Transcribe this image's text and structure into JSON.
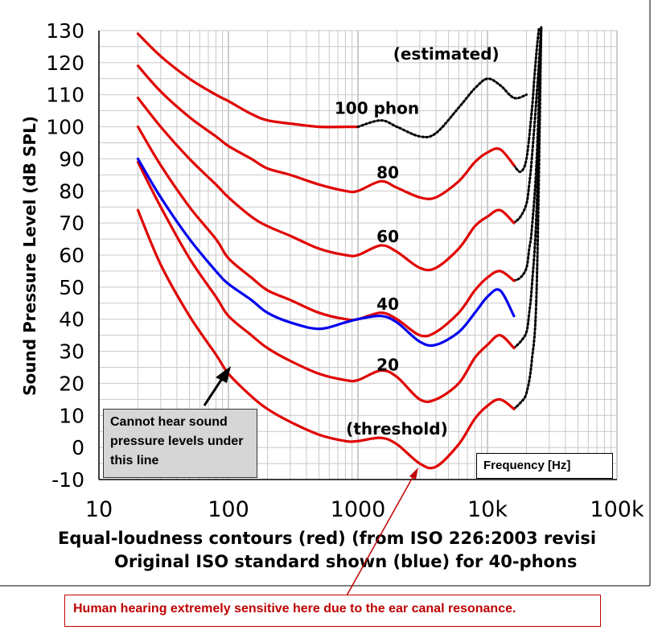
{
  "chart_data": {
    "type": "line",
    "title": "",
    "xlabel_line1": "Equal-loudness contours (red) (from ISO 226:2003 revisi",
    "xlabel_line2": "Original ISO standard shown (blue) for 40-phons",
    "ylabel": "Sound Pressure Level (dB SPL)",
    "x_scale": "log",
    "xlim": [
      10,
      100000
    ],
    "ylim": [
      -10,
      130
    ],
    "x_ticks": [
      10,
      100,
      1000,
      10000,
      100000
    ],
    "x_tick_labels": [
      "10",
      "100",
      "1000",
      "10k",
      "100k"
    ],
    "y_ticks": [
      -10,
      0,
      10,
      20,
      30,
      40,
      50,
      60,
      70,
      80,
      90,
      100,
      110,
      120,
      130
    ],
    "y_tick_labels": [
      "-10",
      "0",
      "10",
      "20",
      "30",
      "40",
      "50",
      "60",
      "70",
      "80",
      "90",
      "100",
      "110",
      "120",
      "130"
    ],
    "grid": true,
    "series": [
      {
        "name": "threshold",
        "label": "(threshold)",
        "color": "#e00000",
        "style": "solid",
        "x": [
          20,
          30,
          50,
          80,
          100,
          150,
          200,
          300,
          500,
          800,
          1000,
          1500,
          2000,
          3000,
          4000,
          6000,
          8000,
          10000,
          12500,
          16000
        ],
        "y": [
          74,
          57,
          41,
          29,
          23,
          16,
          12,
          8,
          4,
          2,
          2,
          3,
          1,
          -5,
          -6,
          1,
          9,
          13,
          15,
          12
        ]
      },
      {
        "name": "20 phon",
        "label": "20",
        "color": "#e00000",
        "style": "solid",
        "x": [
          20,
          30,
          50,
          80,
          100,
          150,
          200,
          300,
          500,
          800,
          1000,
          1500,
          2000,
          3000,
          4000,
          6000,
          8000,
          10000,
          12500,
          16000
        ],
        "y": [
          89,
          75,
          59,
          47,
          41,
          35,
          31,
          27,
          23,
          21,
          21,
          24,
          22,
          15,
          15,
          20,
          28,
          32,
          35,
          31
        ]
      },
      {
        "name": "40 phon",
        "label": "40",
        "color": "#e00000",
        "style": "solid",
        "x": [
          20,
          30,
          50,
          80,
          100,
          150,
          200,
          300,
          500,
          800,
          1000,
          1500,
          2000,
          3000,
          4000,
          6000,
          8000,
          10000,
          12500,
          16000
        ],
        "y": [
          100,
          88,
          75,
          65,
          59,
          53,
          49,
          46,
          42,
          40,
          40,
          42,
          40,
          35,
          36,
          42,
          49,
          53,
          55,
          52
        ]
      },
      {
        "name": "60 phon",
        "label": "60",
        "color": "#e00000",
        "style": "solid",
        "x": [
          20,
          30,
          50,
          80,
          100,
          150,
          200,
          300,
          500,
          800,
          1000,
          1500,
          2000,
          3000,
          4000,
          6000,
          8000,
          10000,
          12500,
          16000
        ],
        "y": [
          109,
          100,
          90,
          82,
          78,
          72,
          69,
          66,
          62,
          60,
          60,
          63,
          61,
          56,
          56,
          62,
          69,
          72,
          74,
          70
        ]
      },
      {
        "name": "80 phon",
        "label": "80",
        "color": "#e00000",
        "style": "solid",
        "x": [
          20,
          30,
          50,
          80,
          100,
          150,
          200,
          300,
          500,
          800,
          1000,
          1500,
          2000,
          3000,
          4000,
          6000,
          8000,
          10000,
          12500,
          16000
        ],
        "y": [
          119,
          111,
          103,
          97,
          94,
          90,
          87,
          85,
          82,
          80,
          80,
          83,
          81,
          78,
          78,
          83,
          89,
          92,
          93,
          88
        ]
      },
      {
        "name": "100 phon",
        "label": "100 phon",
        "color": "#e00000",
        "style": "solid",
        "x": [
          20,
          30,
          50,
          80,
          100,
          150,
          200,
          300,
          500,
          800,
          1000
        ],
        "y": [
          129,
          122,
          115,
          110,
          108,
          104,
          102,
          101,
          100,
          100,
          100
        ]
      },
      {
        "name": "100 phon (estimated)",
        "label": "(estimated)",
        "color": "#000000",
        "style": "dotted",
        "x": [
          1000,
          1500,
          2000,
          3000,
          4000,
          6000,
          8000,
          10000,
          12500,
          16000,
          20000
        ],
        "y": [
          100,
          102,
          100,
          97,
          98,
          106,
          112,
          115,
          113,
          109,
          110
        ]
      },
      {
        "name": "40 phon original ISO",
        "label": "",
        "color": "#0000ee",
        "style": "solid",
        "x": [
          20,
          30,
          50,
          80,
          100,
          150,
          200,
          300,
          500,
          800,
          1000,
          1500,
          2000,
          3000,
          4000,
          6000,
          8000,
          10000,
          12500,
          16000
        ],
        "y": [
          90,
          78,
          65,
          55,
          51,
          46,
          42,
          39,
          37,
          39,
          40,
          41,
          39,
          33,
          32,
          36,
          42,
          47,
          49,
          41
        ]
      }
    ],
    "estimated_tails": [
      {
        "x": [
          16000,
          18000,
          20000,
          22000,
          23000,
          24000,
          25000
        ],
        "y": [
          88,
          86,
          90,
          105,
          115,
          124,
          131
        ]
      },
      {
        "x": [
          16000,
          18000,
          20000,
          21000,
          22000,
          24000,
          26000
        ],
        "y": [
          70,
          72,
          76,
          82,
          90,
          110,
          131
        ]
      },
      {
        "x": [
          16000,
          18000,
          20000,
          21000,
          22000,
          24000,
          26000
        ],
        "y": [
          52,
          53,
          56,
          62,
          68,
          90,
          131
        ]
      },
      {
        "x": [
          16000,
          18000,
          20000,
          21000,
          22000,
          24000,
          26000
        ],
        "y": [
          31,
          33,
          36,
          42,
          50,
          75,
          131
        ]
      },
      {
        "x": [
          16000,
          18000,
          20000,
          22000,
          24000,
          26000
        ],
        "y": [
          12,
          14,
          17,
          27,
          50,
          131
        ]
      }
    ]
  },
  "annotations": {
    "cannot_hear": "Cannot hear sound pressure levels under this line",
    "frequency_box": "Frequency [Hz]",
    "human_hearing": "Human hearing extremely sensitive here due to the ear canal resonance."
  }
}
